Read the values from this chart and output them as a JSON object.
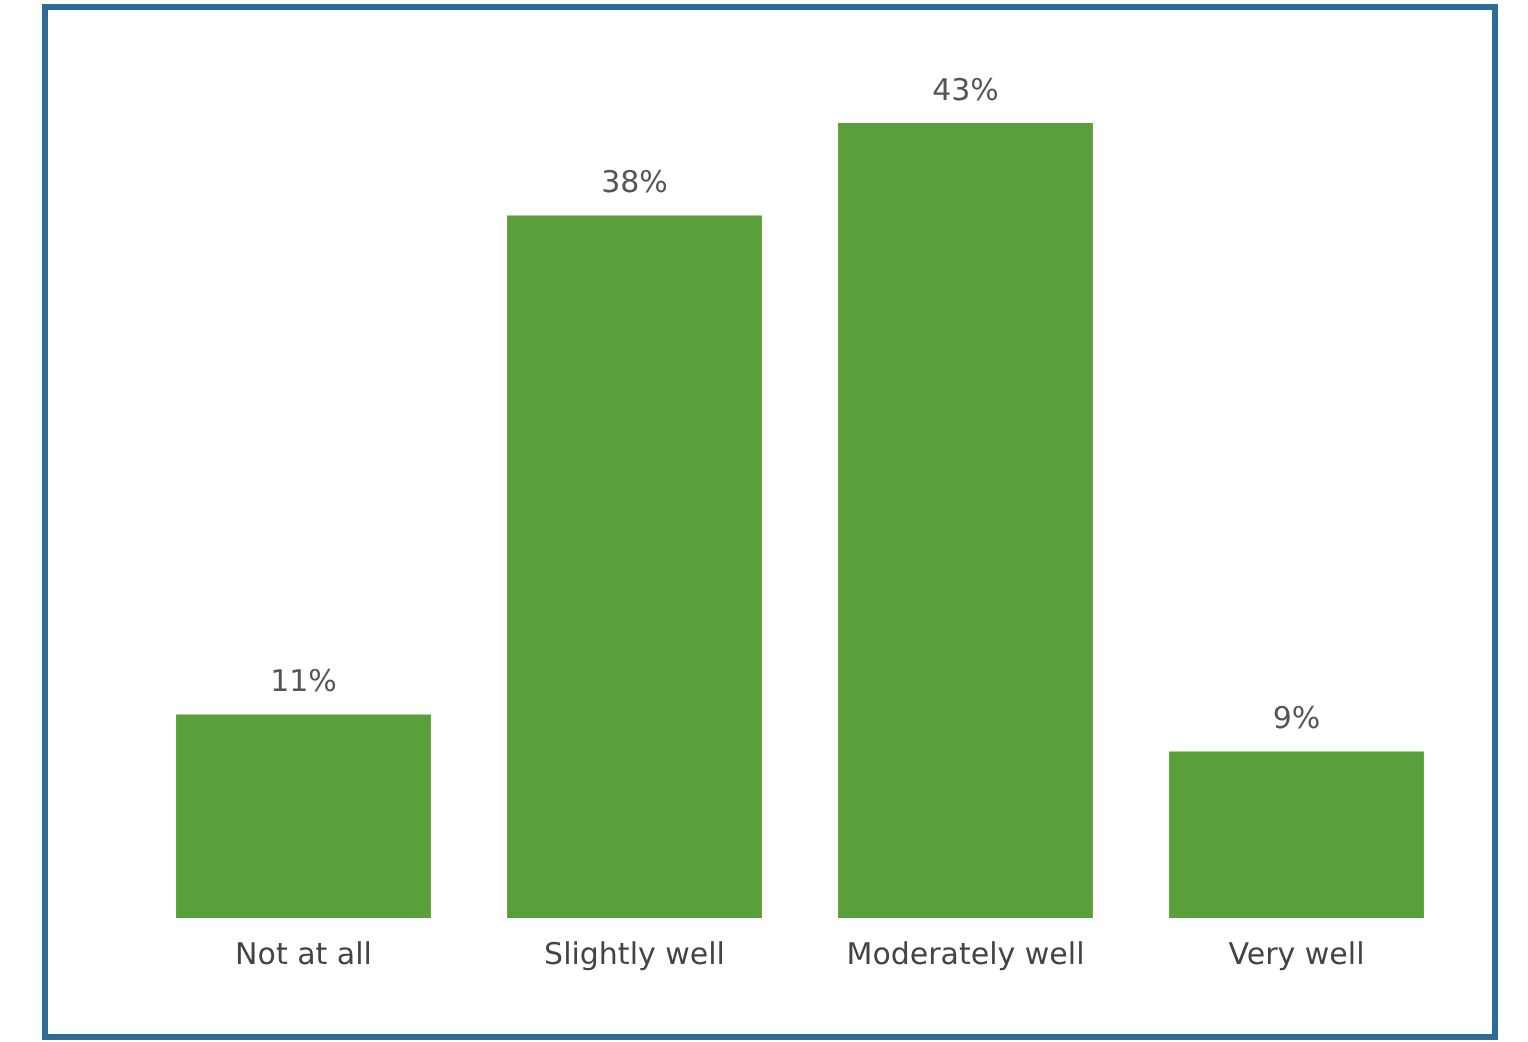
{
  "chart_data": {
    "type": "bar",
    "categories": [
      "Not at all",
      "Slightly well",
      "Moderately well",
      "Very well"
    ],
    "values": [
      11,
      38,
      43,
      9
    ],
    "color": "#5aa03a",
    "data_labels": true,
    "value_labels": [
      "11%",
      "38%",
      "43%",
      "9%"
    ],
    "grid": false,
    "legend": false
  }
}
